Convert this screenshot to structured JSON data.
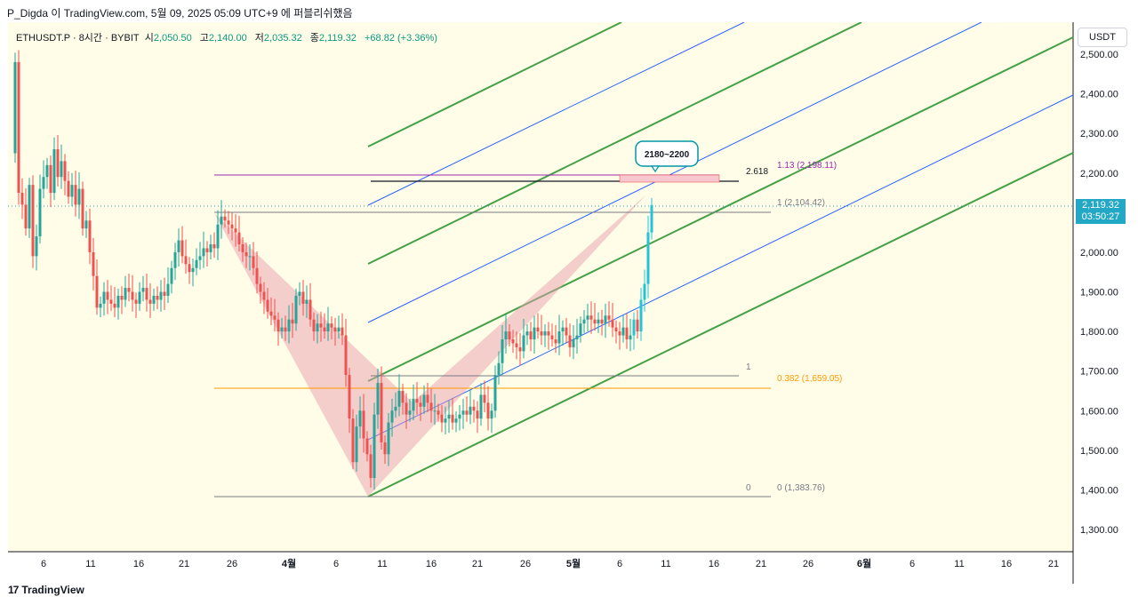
{
  "header": {
    "caption": "P_Digda 이 TradingView.com, 5월 09, 2025 05:09 UTC+9 에 퍼블리쉬했음"
  },
  "legend": {
    "symbol": "ETHUSDT.P · 8시간 · BYBIT",
    "open_label": "시",
    "open": "2,050.50",
    "high_label": "고",
    "high": "2,140.00",
    "low_label": "저",
    "low": "2,035.32",
    "close_label": "종",
    "close": "2,119.32",
    "change": "+68.82 (+3.36%)"
  },
  "price_axis": {
    "unit": "USDT",
    "ticks": [
      "2,500.00",
      "2,400.00",
      "2,300.00",
      "2,200.00",
      "2,100.00",
      "2,000.00",
      "1,900.00",
      "1,800.00",
      "1,700.00",
      "1,600.00",
      "1,500.00",
      "1,400.00",
      "1,300.00"
    ],
    "last_price": "2,119.32",
    "countdown": "03:50:27"
  },
  "time_axis": {
    "ticks": [
      "6",
      "11",
      "16",
      "21",
      "26",
      "4월",
      "6",
      "11",
      "16",
      "21",
      "26",
      "5월",
      "6",
      "11",
      "16",
      "21",
      "26",
      "6월",
      "6",
      "11",
      "16",
      "21"
    ]
  },
  "annotations": {
    "target_callout": "2180~2200",
    "ext_level": "2.618",
    "fib_113": "1.13 (2,198.11)",
    "fib_1": "1 (2,104.42)",
    "fib_0382": "0.382 (1,659.05)",
    "fib_0": "0 (1,383.76)",
    "point_1": "1",
    "point_0": "0"
  },
  "colors": {
    "up": "#26a69a",
    "up_bright": "#22c5d8",
    "down": "#ef5350",
    "channel_green": "#43a047",
    "channel_blue": "#2962ff",
    "fib_orange": "#ff9800",
    "fib_purple": "#9c27b0",
    "pattern_fill": "#e8a0b0",
    "background_tint": "#fffde7"
  },
  "footer": {
    "brand": "TradingView"
  },
  "chart_data": {
    "type": "candlestick",
    "title": "ETHUSDT.P · 8시간 · BYBIT",
    "ylim": [
      1250,
      2560
    ],
    "levels": [
      {
        "label": "1.13",
        "price": 2198.11
      },
      {
        "label": "2.618",
        "price": 2180
      },
      {
        "label": "1",
        "price": 2104.42
      },
      {
        "label": "0.382",
        "price": 1659.05
      },
      {
        "label": "0",
        "price": 1383.76
      }
    ],
    "target_zone": [
      2180,
      2200
    ],
    "last": {
      "open": 2050.5,
      "high": 2140.0,
      "low": 2035.32,
      "close": 2119.32
    }
  }
}
